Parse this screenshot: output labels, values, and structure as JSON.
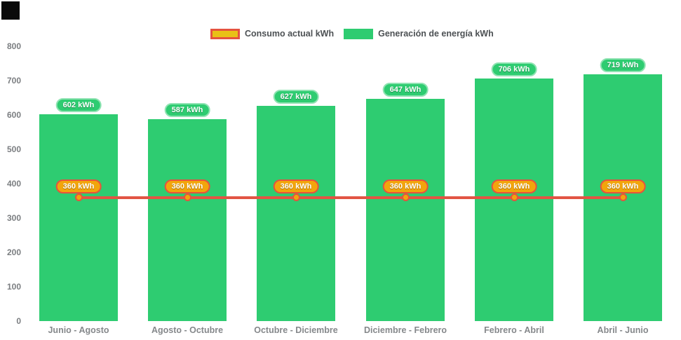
{
  "colors": {
    "background": "#ffffff",
    "bar_fill": "#2ecc71",
    "bar_pill_fill": "#2ecc71",
    "bar_pill_border": "#8fe3b2",
    "line": "#e25544",
    "marker_fill": "#f2a50c",
    "marker_border": "#e5533f",
    "consumption_pill_fill": "#f2a50c",
    "consumption_pill_border": "#e5533f",
    "axis_text": "#7b7e81",
    "legend_text": "#4d5154",
    "corner_square": "#0a0a0a"
  },
  "legend": {
    "items": [
      {
        "label": "Consumo actual kWh",
        "swatch_fill": "#e9c116",
        "swatch_border": "#e5533f"
      },
      {
        "label": "Generación de energía kWh",
        "swatch_fill": "#2ecc71",
        "swatch_border": "#2ecc71"
      }
    ]
  },
  "chart_data": {
    "type": "bar",
    "title": "",
    "categories": [
      "Junio - Agosto",
      "Agosto - Octubre",
      "Octubre - Diciembre",
      "Diciembre - Febrero",
      "Febrero - Abril",
      "Abril - Junio"
    ],
    "series": [
      {
        "name": "Generación de energía kWh",
        "type": "bar",
        "values": [
          602,
          587,
          627,
          647,
          706,
          719
        ],
        "labels": [
          "602 kWh",
          "587 kWh",
          "627 kWh",
          "647 kWh",
          "706 kWh",
          "719 kWh"
        ],
        "color": "#2ecc71"
      },
      {
        "name": "Consumo actual kWh",
        "type": "line",
        "values": [
          360,
          360,
          360,
          360,
          360,
          360
        ],
        "labels": [
          "360 kWh",
          "360 kWh",
          "360 kWh",
          "360 kWh",
          "360 kWh",
          "360 kWh"
        ],
        "color": "#e25544"
      }
    ],
    "xlabel": "",
    "ylabel": "",
    "yticks": [
      0,
      100,
      200,
      300,
      400,
      500,
      600,
      700,
      800
    ],
    "ylim": [
      0,
      800
    ],
    "grid": false,
    "legend_position": "top"
  }
}
